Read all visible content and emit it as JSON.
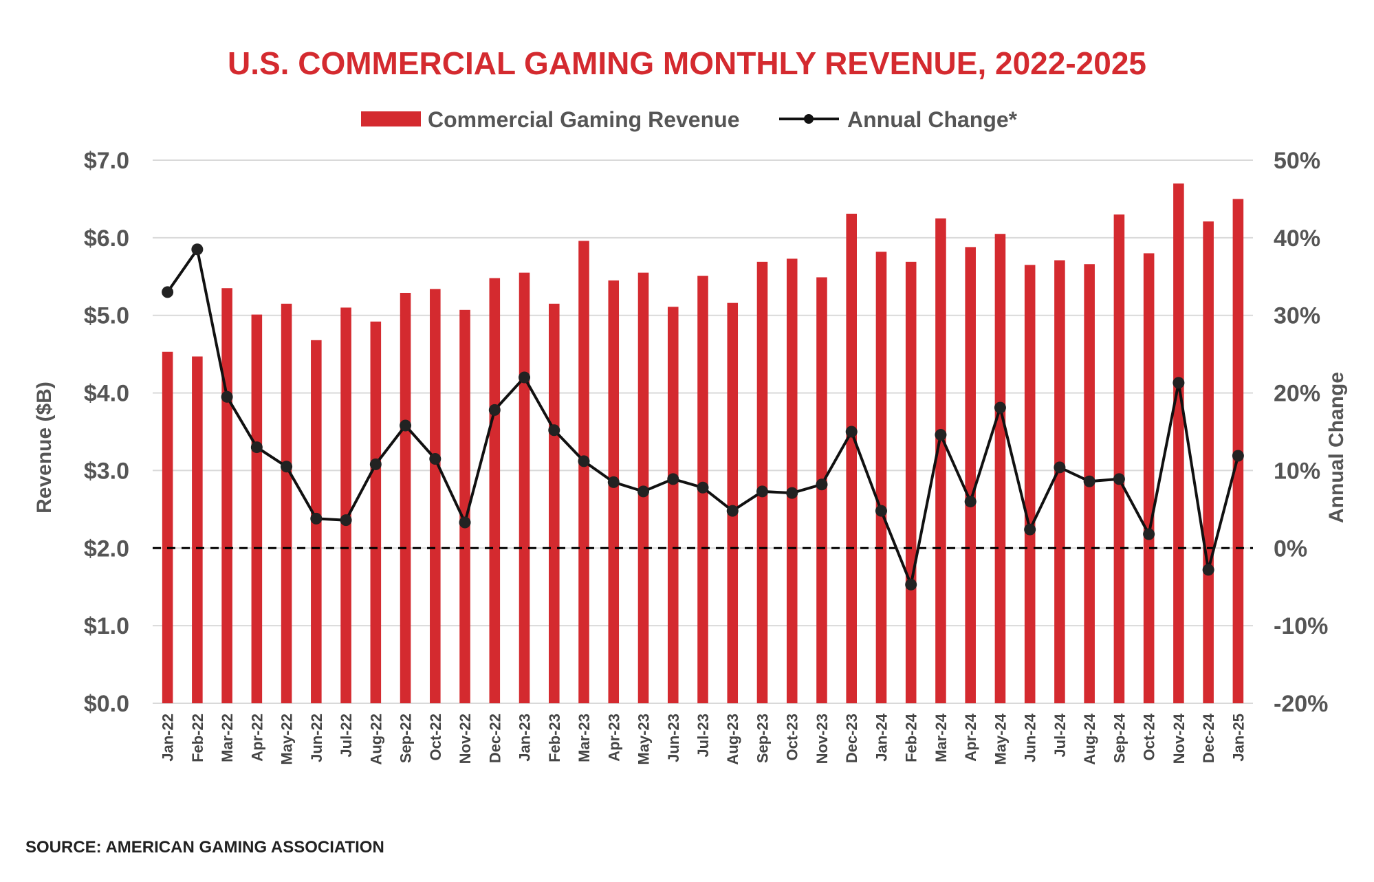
{
  "chart_data": {
    "type": "bar",
    "title": "U.S. COMMERCIAL GAMING MONTHLY REVENUE, 2022-2025",
    "source": "SOURCE: AMERICAN GAMING ASSOCIATION",
    "ylabel": "Revenue ($B)",
    "y2label": "Annual Change",
    "ylim": [
      0,
      7
    ],
    "y2lim": [
      -20,
      50
    ],
    "yticks": [
      "$0.0",
      "$1.0",
      "$2.0",
      "$3.0",
      "$4.0",
      "$5.0",
      "$6.0",
      "$7.0"
    ],
    "y2ticks": [
      "-20%",
      "-10%",
      "0%",
      "10%",
      "20%",
      "30%",
      "40%",
      "50%"
    ],
    "grid": true,
    "legend_position": "top-center",
    "colors": {
      "bar": "#d42a2f",
      "line": "#111111",
      "title": "#d42a2f",
      "grid": "#d9d9d9",
      "text": "#555555"
    },
    "categories": [
      "Jan-22",
      "Feb-22",
      "Mar-22",
      "Apr-22",
      "May-22",
      "Jun-22",
      "Jul-22",
      "Aug-22",
      "Sep-22",
      "Oct-22",
      "Nov-22",
      "Dec-22",
      "Jan-23",
      "Feb-23",
      "Mar-23",
      "Apr-23",
      "May-23",
      "Jun-23",
      "Jul-23",
      "Aug-23",
      "Sep-23",
      "Oct-23",
      "Nov-23",
      "Dec-23",
      "Jan-24",
      "Feb-24",
      "Mar-24",
      "Apr-24",
      "May-24",
      "Jun-24",
      "Jul-24",
      "Aug-24",
      "Sep-24",
      "Oct-24",
      "Nov-24",
      "Dec-24",
      "Jan-25"
    ],
    "series": [
      {
        "name": "Commercial Gaming Revenue",
        "type": "bar",
        "axis": "left",
        "values": [
          4.53,
          4.47,
          5.35,
          5.01,
          5.15,
          4.68,
          5.1,
          4.92,
          5.29,
          5.34,
          5.07,
          5.48,
          5.55,
          5.15,
          5.96,
          5.45,
          5.55,
          5.11,
          5.51,
          5.16,
          5.69,
          5.73,
          5.49,
          6.31,
          5.82,
          5.69,
          6.25,
          5.88,
          6.05,
          5.65,
          5.71,
          5.66,
          6.3,
          5.8,
          6.7,
          6.21,
          6.5
        ]
      },
      {
        "name": "Annual Change*",
        "type": "line",
        "axis": "right",
        "values": [
          33.0,
          38.5,
          19.5,
          13.0,
          10.5,
          3.8,
          3.6,
          10.8,
          15.8,
          11.5,
          3.3,
          17.8,
          22.0,
          15.2,
          11.2,
          8.5,
          7.3,
          8.9,
          7.8,
          4.8,
          7.3,
          7.1,
          8.2,
          15.0,
          4.8,
          -4.7,
          14.6,
          6.0,
          18.1,
          2.4,
          10.4,
          8.6,
          8.9,
          1.8,
          21.3,
          -2.8,
          11.9
        ]
      }
    ]
  }
}
